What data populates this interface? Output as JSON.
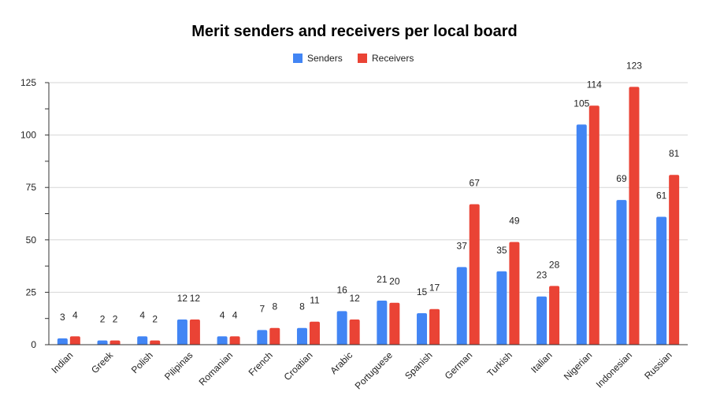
{
  "chart_data": {
    "type": "bar",
    "title": "Merit senders and receivers per local board",
    "xlabel": "",
    "ylabel": "",
    "ylim": [
      0,
      125
    ],
    "yticks": [
      0,
      25,
      50,
      75,
      100,
      125
    ],
    "grid": true,
    "legend_position": "top-center",
    "categories": [
      "Indian",
      "Greek",
      "Polish",
      "Pilipinas",
      "Romanian",
      "French",
      "Croatian",
      "Arabic",
      "Portuguese",
      "Spanish",
      "German",
      "Turkish",
      "Italian",
      "Nigerian",
      "Indonesian",
      "Russian"
    ],
    "series": [
      {
        "name": "Senders",
        "color": "#4285F4",
        "values": [
          3,
          2,
          4,
          12,
          4,
          7,
          8,
          16,
          21,
          15,
          37,
          35,
          23,
          105,
          69,
          61
        ]
      },
      {
        "name": "Receivers",
        "color": "#EA4335",
        "values": [
          4,
          2,
          2,
          12,
          4,
          8,
          11,
          12,
          20,
          17,
          67,
          49,
          28,
          114,
          123,
          81
        ]
      }
    ]
  }
}
